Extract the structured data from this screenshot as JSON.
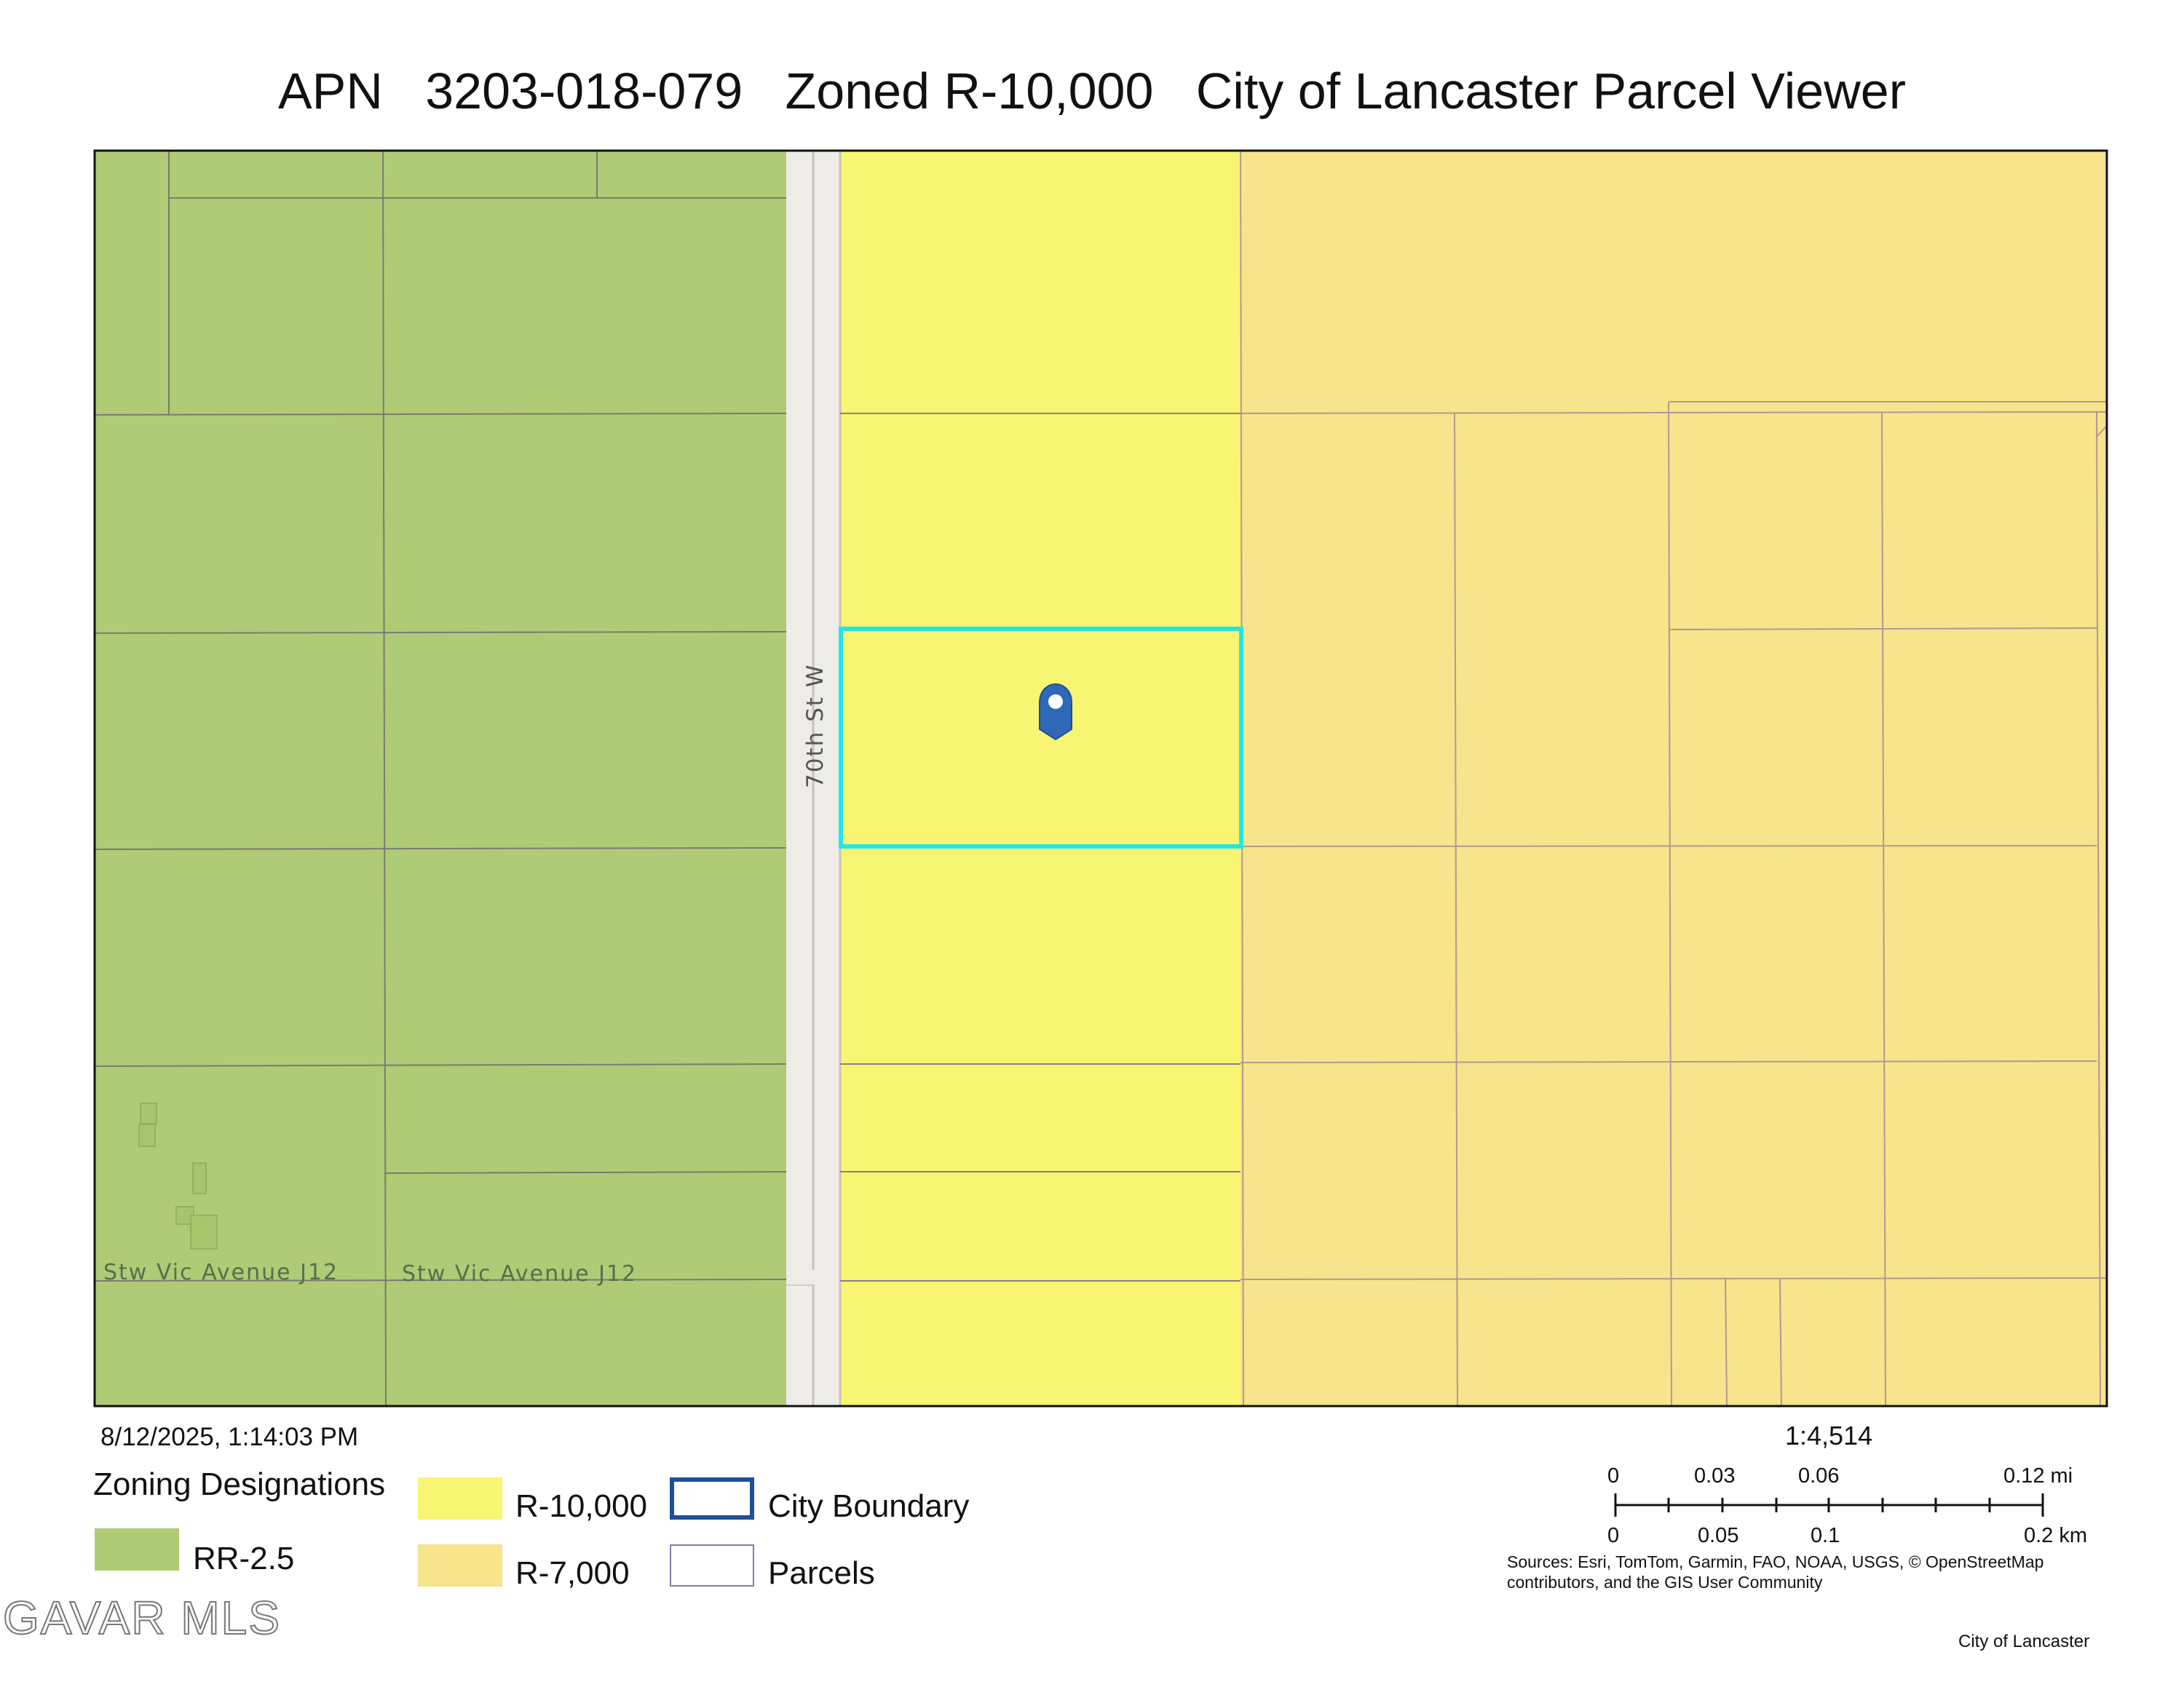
{
  "title": "APN   3203-018-079   Zoned R-10,000   City of Lancaster Parcel Viewer",
  "map": {
    "street_label": "70th St W",
    "avenue_label_1": "Stw Vic Avenue J12",
    "avenue_label_2": "Stw Vic Avenue J12",
    "marker_icon": "map-pin-icon",
    "colors": {
      "rr_2_5": "#b0cb75",
      "r_10000": "#f8f573",
      "r_7000": "#f7e48c",
      "road": "#eeece8",
      "selected_parcel": "#22e6e6",
      "parcel_line": "#8a7f8a",
      "marker": "#2f68b6"
    }
  },
  "timestamp": "8/12/2025, 1:14:03 PM",
  "legend": {
    "title": "Zoning Designations",
    "rr_label": "RR-2.5",
    "r10000_label": "R-10,000",
    "r7000_label": "R-7,000",
    "city_boundary_label": "City Boundary",
    "parcels_label": "Parcels",
    "city_boundary_color": "#1f4e9c",
    "parcels_color": "#8c7ab0"
  },
  "scale": {
    "ratio": "1:4,514",
    "mi_ticks": [
      "0",
      "0.03",
      "0.06",
      "0.12 mi"
    ],
    "km_ticks": [
      "0",
      "0.05",
      "0.1",
      "0.2 km"
    ]
  },
  "sources_line1": "Sources: Esri, TomTom, Garmin, FAO, NOAA, USGS, © OpenStreetMap",
  "sources_line2": "contributors, and the GIS User Community",
  "credit": "City of Lancaster",
  "watermark": "GAVAR MLS"
}
